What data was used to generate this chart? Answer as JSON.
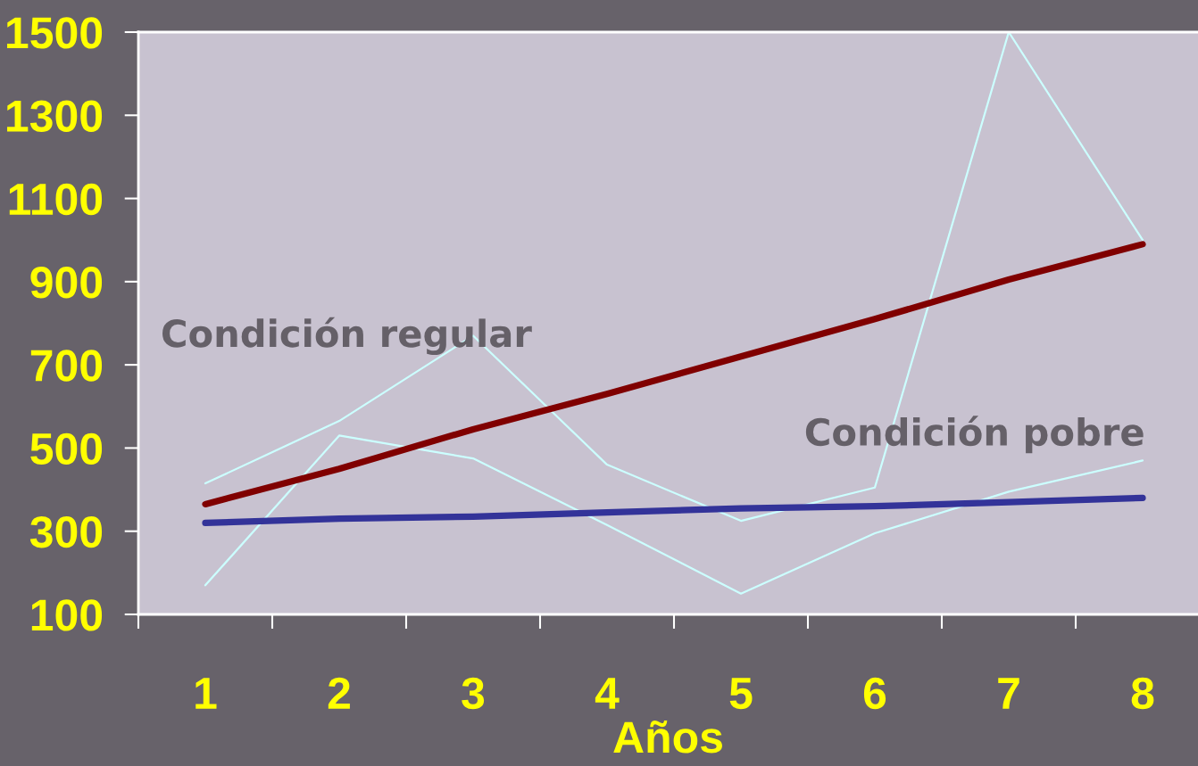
{
  "chart_data": {
    "type": "line",
    "xlabel": "Años",
    "categories": [
      "1",
      "2",
      "3",
      "4",
      "5",
      "6",
      "7",
      "8"
    ],
    "ylim": [
      100,
      1500
    ],
    "yticks": [
      100,
      300,
      500,
      700,
      900,
      1100,
      1300,
      1500
    ],
    "series": [
      {
        "name": "Condición regular",
        "color": "#ccffff",
        "values": [
          415,
          565,
          770,
          460,
          325,
          405,
          1500,
          1000
        ]
      },
      {
        "name": "Condición pobre",
        "color": "#ccffff",
        "values": [
          170,
          530,
          475,
          315,
          150,
          295,
          395,
          470
        ]
      },
      {
        "color": "#800000",
        "values": [
          365,
          450,
          545,
          630,
          720,
          810,
          905,
          990
        ]
      },
      {
        "color": "#333399",
        "values": [
          320,
          330,
          335,
          345,
          355,
          360,
          370,
          380
        ]
      }
    ]
  }
}
